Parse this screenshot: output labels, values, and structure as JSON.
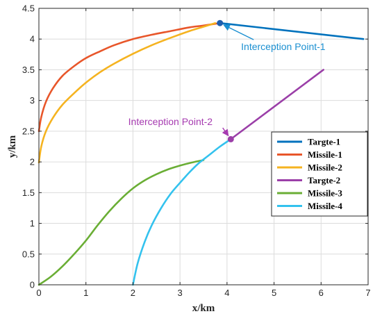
{
  "chart_data": {
    "type": "line",
    "xlabel": "x/km",
    "ylabel": "y/km",
    "xlim": [
      0,
      7
    ],
    "ylim": [
      0,
      4.5
    ],
    "xticks": [
      0,
      1,
      2,
      3,
      4,
      5,
      6,
      7
    ],
    "yticks": [
      0,
      0.5,
      1,
      1.5,
      2,
      2.5,
      3,
      3.5,
      4,
      4.5
    ],
    "xtick_labels": [
      "0",
      "1",
      "2",
      "3",
      "4",
      "5",
      "6",
      "7"
    ],
    "ytick_labels": [
      "0",
      "0.5",
      "1",
      "1.5",
      "2",
      "2.5",
      "3",
      "3.5",
      "4",
      "4.5"
    ],
    "grid": true,
    "legend_position": "right",
    "series": [
      {
        "name": "Targte-1",
        "color": "#0072BD",
        "x": [
          3.85,
          6.9
        ],
        "y": [
          4.26,
          4.0
        ]
      },
      {
        "name": "Missile-1",
        "color": "#E8562A",
        "x": [
          0.0,
          0.05,
          0.15,
          0.3,
          0.5,
          0.75,
          1.0,
          1.3,
          1.6,
          2.0,
          2.4,
          2.8,
          3.2,
          3.5,
          3.85
        ],
        "y": [
          2.5,
          2.73,
          2.98,
          3.2,
          3.4,
          3.56,
          3.69,
          3.8,
          3.9,
          4.0,
          4.07,
          4.13,
          4.19,
          4.22,
          4.26
        ]
      },
      {
        "name": "Missile-2",
        "color": "#F5B320",
        "x": [
          0.0,
          0.05,
          0.15,
          0.3,
          0.5,
          0.75,
          1.0,
          1.3,
          1.6,
          2.0,
          2.4,
          2.8,
          3.2,
          3.5,
          3.75
        ],
        "y": [
          1.99,
          2.25,
          2.5,
          2.72,
          2.93,
          3.12,
          3.29,
          3.46,
          3.6,
          3.76,
          3.9,
          4.02,
          4.13,
          4.2,
          4.26
        ]
      },
      {
        "name": "Targte-2",
        "color": "#9B3FA8",
        "x": [
          4.08,
          6.05
        ],
        "y": [
          2.37,
          3.5
        ]
      },
      {
        "name": "Missile-3",
        "color": "#6AAE35",
        "x": [
          0.0,
          0.25,
          0.5,
          0.75,
          1.0,
          1.25,
          1.5,
          1.75,
          2.0,
          2.25,
          2.5,
          2.75,
          3.0,
          3.25,
          3.5
        ],
        "y": [
          0.0,
          0.13,
          0.3,
          0.5,
          0.72,
          0.97,
          1.2,
          1.4,
          1.57,
          1.7,
          1.8,
          1.88,
          1.94,
          1.99,
          2.03
        ]
      },
      {
        "name": "Missile-4",
        "color": "#33C2EE",
        "x": [
          2.0,
          2.1,
          2.25,
          2.4,
          2.6,
          2.8,
          3.0,
          3.2,
          3.4,
          3.6,
          3.85,
          4.08
        ],
        "y": [
          0.0,
          0.35,
          0.7,
          0.97,
          1.25,
          1.48,
          1.66,
          1.83,
          1.98,
          2.1,
          2.25,
          2.37
        ]
      }
    ],
    "markers": [
      {
        "x": 3.85,
        "y": 4.26,
        "color": "#1F5FAE"
      },
      {
        "x": 4.08,
        "y": 2.37,
        "color": "#9B3FA8"
      }
    ],
    "annotations": [
      {
        "text": "Interception Point-1",
        "color": "#1A8FD1",
        "text_x": 4.3,
        "text_y": 3.82,
        "point_x": 3.85,
        "point_y": 4.26
      },
      {
        "text": "Interception Point-2",
        "color": "#A63AB0",
        "text_x": 1.9,
        "text_y": 2.6,
        "point_x": 4.08,
        "point_y": 2.37
      }
    ]
  }
}
